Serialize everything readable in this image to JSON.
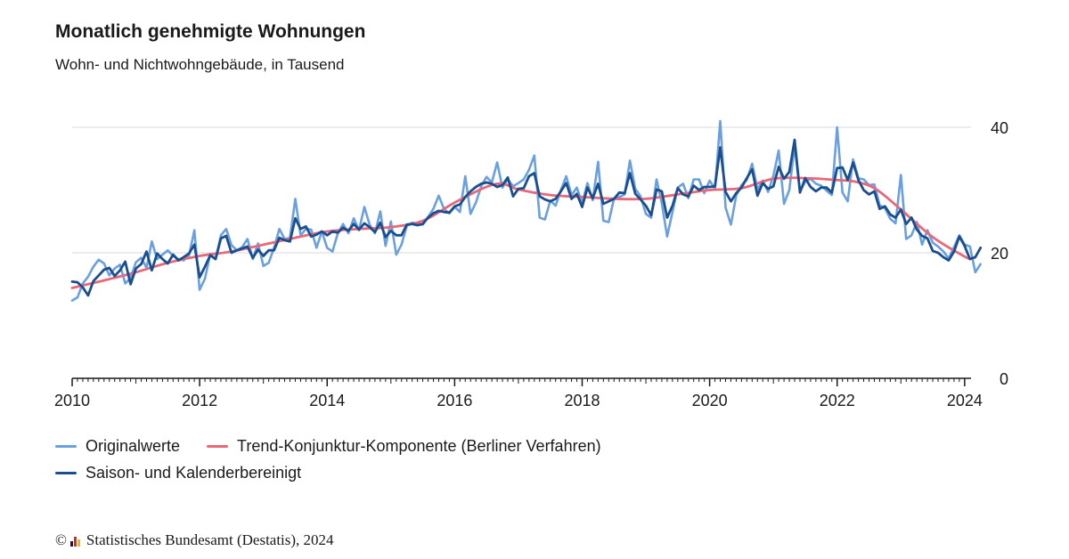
{
  "header": {
    "title": "Monatlich genehmigte Wohnungen",
    "subtitle": "Wohn- und Nichtwohngebäude, in Tausend"
  },
  "footer": {
    "copyright_symbol": "©",
    "text": "Statistisches Bundesamt (Destatis), 2024"
  },
  "colors": {
    "original": "#6a9fe0",
    "trend": "#e8687a",
    "adjusted": "#1a4f8f",
    "grid": "#d9d9d9",
    "axis": "#1a1a1a"
  },
  "chart_data": {
    "type": "line",
    "title": "Monatlich genehmigte Wohnungen",
    "subtitle": "Wohn- und Nichtwohngebäude, in Tausend",
    "x_range": [
      2010,
      2024.1
    ],
    "ylim": [
      0,
      40
    ],
    "y_ticks": [
      0,
      20,
      40
    ],
    "x_ticks": [
      "2010",
      "2012",
      "2014",
      "2016",
      "2018",
      "2020",
      "2022",
      "2024"
    ],
    "grid": "horizontal",
    "y_axis_side": "right",
    "legend_position": "bottom",
    "legend": [
      "Originalwerte",
      "Trend-Konjunktur-Komponente (Berliner Verfahren)",
      "Saison- und Kalenderbereinigt"
    ],
    "series": [
      {
        "name": "Originalwerte",
        "start": 2010.0,
        "step": 0.083333,
        "values": [
          12.4,
          12.9,
          15.1,
          16.2,
          17.8,
          18.9,
          18.3,
          16.4,
          17.5,
          18.1,
          15.1,
          16.0,
          18.5,
          19.2,
          17.6,
          21.8,
          19.0,
          19.7,
          20.4,
          19.5,
          19.0,
          18.8,
          19.6,
          23.6,
          14.1,
          15.9,
          19.8,
          19.0,
          22.8,
          23.8,
          21.2,
          20.4,
          20.9,
          22.2,
          19.0,
          21.5,
          17.9,
          18.4,
          20.8,
          23.8,
          22.2,
          22.4,
          28.6,
          22.8,
          23.8,
          23.7,
          20.8,
          23.4,
          20.8,
          20.2,
          23.1,
          24.6,
          23.1,
          25.5,
          23.6,
          27.3,
          24.5,
          23.1,
          26.6,
          21.1,
          25.0,
          19.7,
          21.3,
          24.3,
          24.8,
          24.7,
          24.5,
          25.7,
          27.0,
          29.1,
          27.0,
          26.3,
          27.3,
          26.5,
          32.2,
          26.2,
          28.0,
          30.6,
          32.1,
          31.2,
          34.4,
          30.4,
          31.7,
          30.6,
          31.1,
          31.7,
          33.2,
          35.5,
          25.6,
          25.3,
          28.3,
          27.5,
          30.0,
          32.2,
          29.2,
          30.4,
          27.9,
          31.1,
          28.4,
          34.5,
          25.1,
          24.9,
          28.7,
          28.9,
          29.3,
          34.7,
          30.2,
          29.0,
          26.2,
          25.6,
          31.7,
          27.9,
          22.6,
          26.5,
          30.4,
          31.0,
          28.7,
          31.7,
          31.7,
          29.5,
          31.5,
          30.2,
          41.0,
          27.2,
          24.5,
          29.1,
          30.8,
          31.6,
          34.2,
          30.1,
          31.5,
          29.7,
          32.3,
          36.3,
          27.8,
          30.0,
          37.0,
          29.8,
          31.3,
          31.8,
          31.0,
          30.7,
          29.9,
          29.2,
          40.0,
          29.6,
          28.2,
          34.9,
          31.9,
          31.7,
          30.8,
          30.9,
          27.6,
          27.1,
          25.4,
          24.7,
          32.4,
          22.2,
          22.8,
          24.9,
          21.3,
          23.6,
          21.6,
          21.0,
          20.2,
          19.1,
          20.9,
          22.8,
          21.3,
          21.0,
          16.9,
          18.2
        ]
      },
      {
        "name": "Trend-Konjunktur-Komponente (Berliner Verfahren)",
        "x": [
          2010.0,
          2010.5,
          2011.0,
          2011.5,
          2012.0,
          2012.5,
          2013.0,
          2013.5,
          2014.0,
          2014.5,
          2015.0,
          2015.5,
          2016.0,
          2016.5,
          2016.75,
          2017.0,
          2017.5,
          2018.0,
          2018.5,
          2019.0,
          2019.5,
          2020.0,
          2020.5,
          2021.0,
          2021.5,
          2022.0,
          2022.3,
          2022.6,
          2023.0,
          2023.5,
          2024.0,
          2024.1
        ],
        "y": [
          14.4,
          15.6,
          16.9,
          18.4,
          19.5,
          20.2,
          21.3,
          22.4,
          23.4,
          23.8,
          24.1,
          25.1,
          28.0,
          30.5,
          31.0,
          30.1,
          29.2,
          28.9,
          28.6,
          28.6,
          29.3,
          30.0,
          30.3,
          31.8,
          31.9,
          31.6,
          31.3,
          30.2,
          26.9,
          22.5,
          19.4,
          19.1
        ]
      },
      {
        "name": "Saison- und Kalenderbereinigt",
        "start": 2010.0,
        "step": 0.083333,
        "values": [
          15.4,
          15.3,
          14.5,
          13.2,
          15.5,
          16.4,
          17.3,
          17.6,
          16.3,
          17.2,
          18.6,
          15.0,
          17.5,
          18.2,
          20.2,
          17.2,
          19.9,
          19.0,
          18.3,
          19.7,
          18.8,
          19.3,
          19.9,
          21.3,
          16.1,
          17.8,
          19.6,
          19.0,
          22.3,
          22.7,
          20.0,
          20.4,
          20.7,
          21.0,
          19.2,
          20.5,
          19.5,
          20.4,
          20.4,
          22.4,
          22.0,
          21.8,
          25.5,
          23.8,
          24.2,
          22.6,
          22.9,
          23.4,
          22.8,
          23.4,
          23.2,
          24.0,
          23.5,
          24.6,
          23.7,
          24.7,
          24.1,
          23.3,
          24.8,
          22.5,
          23.5,
          22.8,
          22.8,
          24.5,
          24.6,
          24.4,
          24.6,
          25.6,
          26.3,
          26.7,
          26.5,
          26.4,
          27.4,
          27.7,
          28.9,
          29.8,
          30.5,
          31.0,
          31.2,
          31.0,
          30.5,
          30.8,
          32.0,
          29.0,
          30.2,
          30.3,
          32.2,
          32.7,
          29.0,
          28.5,
          28.2,
          28.6,
          29.8,
          31.1,
          28.6,
          29.4,
          27.3,
          30.4,
          28.7,
          31.0,
          27.8,
          28.2,
          28.6,
          29.6,
          29.5,
          32.7,
          29.4,
          28.5,
          27.5,
          26.0,
          30.1,
          29.8,
          25.6,
          27.5,
          30.3,
          29.3,
          29.0,
          30.7,
          30.0,
          30.5,
          30.5,
          30.6,
          36.8,
          29.7,
          28.2,
          29.5,
          30.4,
          31.9,
          33.3,
          29.1,
          31.1,
          30.2,
          30.6,
          33.7,
          31.8,
          32.9,
          38.0,
          29.6,
          31.9,
          30.5,
          29.8,
          30.4,
          30.4,
          29.6,
          33.5,
          33.6,
          31.6,
          34.4,
          31.6,
          30.0,
          29.3,
          29.8,
          27.0,
          27.4,
          26.1,
          25.6,
          26.9,
          24.6,
          25.6,
          23.7,
          22.7,
          22.3,
          20.3,
          20.0,
          19.3,
          18.8,
          20.2,
          22.6,
          21.1,
          19.0,
          19.3,
          20.8
        ]
      }
    ]
  }
}
